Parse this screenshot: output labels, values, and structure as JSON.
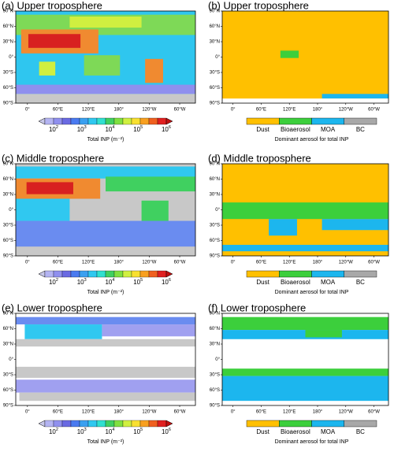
{
  "panels": [
    {
      "title": "(a) Upper troposphere",
      "lat_labels": [
        "90°N",
        "60°N",
        "30°N",
        "0°",
        "30°S",
        "60°S",
        "90°S"
      ],
      "lon_labels": [
        "0°",
        "60°E",
        "120°E",
        "180°",
        "120°W",
        "60°W"
      ],
      "colorbar": {
        "ticks": [
          {
            "base": "10",
            "exp": "2"
          },
          {
            "base": "10",
            "exp": "3"
          },
          {
            "base": "10",
            "exp": "4"
          },
          {
            "base": "10",
            "exp": "5"
          },
          {
            "base": "10",
            "exp": "6"
          }
        ],
        "label": "Total INP (m⁻²)"
      }
    },
    {
      "title": "(b) Upper troposphere",
      "lat_labels": [
        "90°N",
        "60°N",
        "30°N",
        "0°",
        "30°S",
        "60°S",
        "90°S"
      ],
      "lon_labels": [
        "0°",
        "60°E",
        "120°E",
        "180°",
        "120°W",
        "60°W"
      ],
      "legend": {
        "items": [
          "Dust",
          "Bioaerosol",
          "MOA",
          "BC"
        ],
        "colors": [
          "#ffc000",
          "#3ccf3c",
          "#1cb6ee",
          "#a8a8a8"
        ],
        "label": "Dominant aerosol for total INP"
      }
    },
    {
      "title": "(c) Middle troposphere",
      "lat_labels": [
        "90°N",
        "60°N",
        "30°N",
        "0°",
        "30°S",
        "60°S",
        "90°S"
      ],
      "lon_labels": [
        "0°",
        "60°E",
        "120°E",
        "180°",
        "120°W",
        "60°W"
      ],
      "colorbar": {
        "ticks": [
          {
            "base": "10",
            "exp": "2"
          },
          {
            "base": "10",
            "exp": "3"
          },
          {
            "base": "10",
            "exp": "4"
          },
          {
            "base": "10",
            "exp": "5"
          },
          {
            "base": "10",
            "exp": "6"
          }
        ],
        "label": "Total INP (m⁻²)"
      }
    },
    {
      "title": "(d) Middle troposphere",
      "lat_labels": [
        "90°N",
        "60°N",
        "30°N",
        "0°",
        "30°S",
        "60°S",
        "90°S"
      ],
      "lon_labels": [
        "0°",
        "60°E",
        "120°E",
        "180°",
        "120°W",
        "60°W"
      ],
      "legend": {
        "items": [
          "Dust",
          "Bioaerosol",
          "MOA",
          "BC"
        ],
        "colors": [
          "#ffc000",
          "#3ccf3c",
          "#1cb6ee",
          "#a8a8a8"
        ],
        "label": "Dominant aerosol for total INP"
      }
    },
    {
      "title": "(e) Lower troposphere",
      "lat_labels": [
        "90°N",
        "60°N",
        "30°N",
        "0°",
        "30°S",
        "60°S",
        "90°S"
      ],
      "lon_labels": [
        "0°",
        "60°E",
        "120°E",
        "180°",
        "120°W",
        "60°W"
      ],
      "colorbar": {
        "ticks": [
          {
            "base": "10",
            "exp": "2"
          },
          {
            "base": "10",
            "exp": "3"
          },
          {
            "base": "10",
            "exp": "4"
          },
          {
            "base": "10",
            "exp": "5"
          },
          {
            "base": "10",
            "exp": "6"
          }
        ],
        "label": "Total INP (m⁻²)"
      }
    },
    {
      "title": "(f) Lower troposphere",
      "lat_labels": [
        "90°N",
        "60°N",
        "30°N",
        "0°",
        "30°S",
        "60°S",
        "90°S"
      ],
      "lon_labels": [
        "0°",
        "60°E",
        "120°E",
        "180°",
        "120°W",
        "60°W"
      ],
      "legend": {
        "items": [
          "Dust",
          "Bioaerosol",
          "MOA",
          "BC"
        ],
        "colors": [
          "#ffc000",
          "#3ccf3c",
          "#1cb6ee",
          "#a8a8a8"
        ],
        "label": "Dominant aerosol for total INP"
      }
    }
  ]
}
